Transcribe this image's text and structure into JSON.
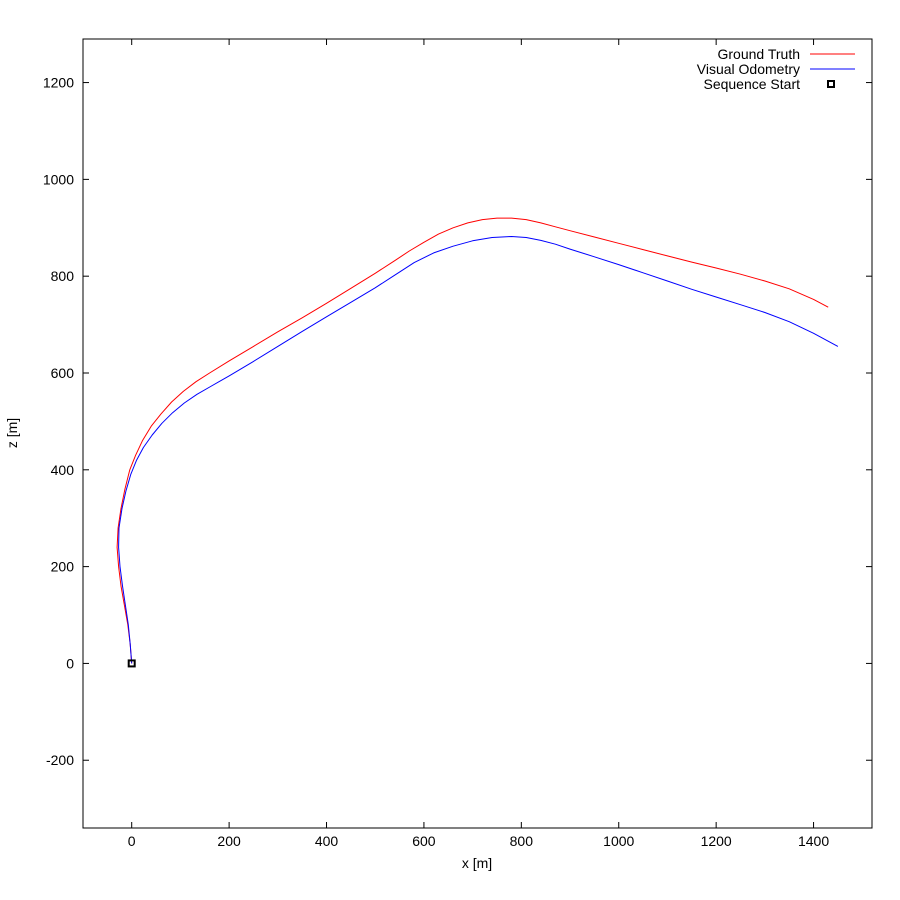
{
  "chart_data": {
    "type": "line",
    "xlabel": "x [m]",
    "ylabel": "z [m]",
    "xlim": [
      -100,
      1520
    ],
    "ylim": [
      -340,
      1290
    ],
    "xticks": [
      0,
      200,
      400,
      600,
      800,
      1000,
      1200,
      1400
    ],
    "yticks": [
      -200,
      0,
      200,
      400,
      600,
      800,
      1000,
      1200
    ],
    "grid": false,
    "legend_position": "top-right",
    "series": [
      {
        "name": "Ground Truth",
        "color": "#ff0000",
        "x": [
          0,
          -3,
          -8,
          -15,
          -22,
          -27,
          -30,
          -28,
          -22,
          -14,
          -4,
          8,
          22,
          40,
          60,
          82,
          106,
          132,
          160,
          200,
          250,
          300,
          350,
          400,
          450,
          500,
          540,
          570,
          600,
          630,
          660,
          690,
          720,
          750,
          780,
          810,
          840,
          870,
          900,
          950,
          1000,
          1050,
          1100,
          1150,
          1200,
          1250,
          1300,
          1350,
          1400,
          1430
        ],
        "y": [
          0,
          40,
          80,
          120,
          160,
          200,
          240,
          280,
          320,
          360,
          400,
          430,
          460,
          490,
          515,
          540,
          562,
          582,
          600,
          625,
          655,
          685,
          714,
          744,
          775,
          806,
          832,
          852,
          870,
          887,
          900,
          910,
          917,
          920,
          920,
          917,
          910,
          902,
          894,
          881,
          868,
          855,
          842,
          829,
          817,
          804,
          790,
          774,
          752,
          736
        ]
      },
      {
        "name": "Visual Odometry",
        "color": "#0000ff",
        "x": [
          0,
          -3,
          -7,
          -13,
          -19,
          -24,
          -27,
          -26,
          -20,
          -12,
          -2,
          10,
          24,
          42,
          62,
          84,
          108,
          134,
          162,
          200,
          250,
          300,
          350,
          400,
          450,
          500,
          540,
          580,
          620,
          660,
          700,
          740,
          780,
          810,
          840,
          870,
          900,
          950,
          1000,
          1050,
          1100,
          1150,
          1200,
          1250,
          1300,
          1350,
          1400,
          1450
        ],
        "y": [
          0,
          40,
          80,
          120,
          160,
          200,
          240,
          280,
          320,
          356,
          390,
          420,
          446,
          472,
          496,
          518,
          538,
          556,
          572,
          594,
          624,
          655,
          686,
          716,
          746,
          776,
          802,
          828,
          848,
          862,
          873,
          880,
          882,
          880,
          874,
          866,
          856,
          840,
          824,
          807,
          790,
          773,
          757,
          741,
          725,
          706,
          682,
          655
        ]
      }
    ],
    "markers": [
      {
        "name": "Sequence Start",
        "x": 0,
        "y": 0,
        "shape": "open-square",
        "color": "#000000"
      }
    ]
  }
}
